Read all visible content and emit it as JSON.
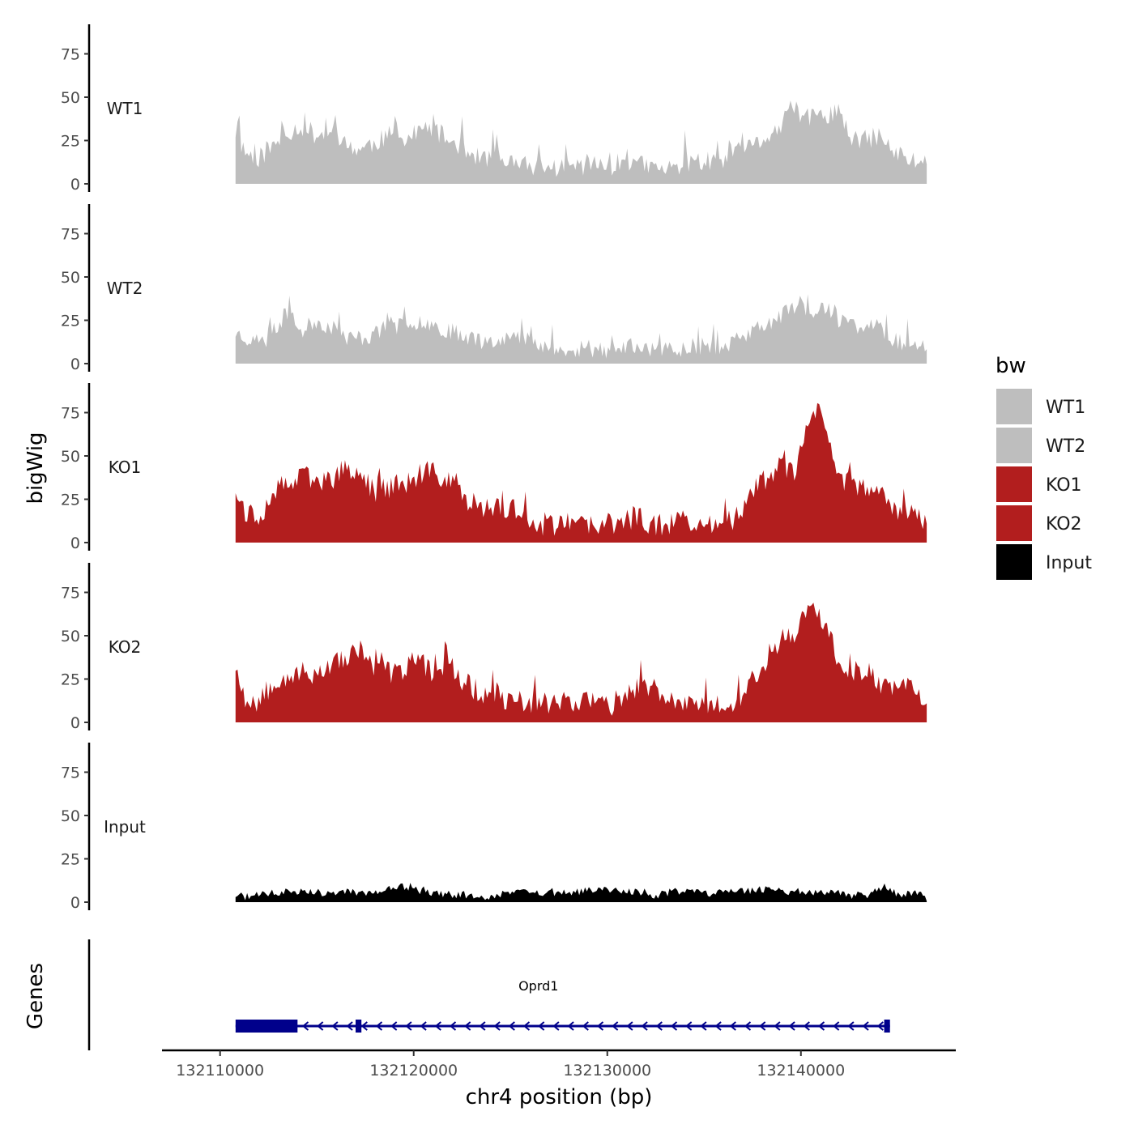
{
  "chart_data": {
    "type": "area",
    "y_axis_title": "bigWig",
    "x_axis_title": "chr4 position (bp)",
    "genes_axis_title": "Genes",
    "xlim": [
      132107000,
      132148000
    ],
    "x_data_range": [
      132110800,
      132146500
    ],
    "ylim": [
      0,
      92
    ],
    "y_ticks": [
      0,
      25,
      50,
      75
    ],
    "x_ticks": [
      132110000,
      132120000,
      132130000,
      132140000
    ],
    "x_tick_labels": [
      "132110000",
      "132120000",
      "132130000",
      "132140000"
    ],
    "legend": {
      "title": "bw",
      "position": "right",
      "entries": [
        {
          "label": "WT1",
          "color": "#bebebe"
        },
        {
          "label": "WT2",
          "color": "#bebebe"
        },
        {
          "label": "KO1",
          "color": "#b21e1e"
        },
        {
          "label": "KO2",
          "color": "#b21e1e"
        },
        {
          "label": "Input",
          "color": "#000000"
        }
      ]
    },
    "series": [
      {
        "name": "WT1",
        "color": "#bebebe",
        "anchors": [
          [
            132110800,
            30
          ],
          [
            132111300,
            18
          ],
          [
            132112000,
            15
          ],
          [
            132112800,
            22
          ],
          [
            132113500,
            30
          ],
          [
            132114200,
            33
          ],
          [
            132115000,
            28
          ],
          [
            132115800,
            30
          ],
          [
            132116500,
            22
          ],
          [
            132117300,
            20
          ],
          [
            132118000,
            24
          ],
          [
            132118800,
            28
          ],
          [
            132119500,
            25
          ],
          [
            132120300,
            30
          ],
          [
            132121000,
            32
          ],
          [
            132121800,
            25
          ],
          [
            132122500,
            22
          ],
          [
            132123300,
            15
          ],
          [
            132124000,
            15
          ],
          [
            132125000,
            12
          ],
          [
            132126000,
            10
          ],
          [
            132127000,
            9
          ],
          [
            132128000,
            10
          ],
          [
            132129000,
            11
          ],
          [
            132130000,
            10
          ],
          [
            132131000,
            13
          ],
          [
            132132000,
            10
          ],
          [
            132133000,
            8
          ],
          [
            132134000,
            12
          ],
          [
            132135000,
            13
          ],
          [
            132136000,
            12
          ],
          [
            132137000,
            18
          ],
          [
            132138000,
            25
          ],
          [
            132139000,
            33
          ],
          [
            132139600,
            45
          ],
          [
            132140200,
            38
          ],
          [
            132141000,
            38
          ],
          [
            132141800,
            42
          ],
          [
            132142600,
            26
          ],
          [
            132143300,
            25
          ],
          [
            132144000,
            28
          ],
          [
            132144800,
            18
          ],
          [
            132145600,
            14
          ],
          [
            132146500,
            12
          ]
        ],
        "noise": 6,
        "spike_prob": 0.12,
        "spike": 14,
        "seed": 11
      },
      {
        "name": "WT2",
        "color": "#bebebe",
        "anchors": [
          [
            132110800,
            18
          ],
          [
            132111500,
            14
          ],
          [
            132112300,
            12
          ],
          [
            132113000,
            22
          ],
          [
            132113600,
            32
          ],
          [
            132114100,
            18
          ],
          [
            132115000,
            25
          ],
          [
            132115800,
            20
          ],
          [
            132116500,
            15
          ],
          [
            132117500,
            15
          ],
          [
            132118500,
            20
          ],
          [
            132119500,
            22
          ],
          [
            132120500,
            25
          ],
          [
            132121500,
            20
          ],
          [
            132122500,
            17
          ],
          [
            132123500,
            13
          ],
          [
            132124500,
            15
          ],
          [
            132125500,
            15
          ],
          [
            132126500,
            12
          ],
          [
            132127300,
            8
          ],
          [
            132128200,
            6
          ],
          [
            132129000,
            7
          ],
          [
            132130000,
            7
          ],
          [
            132131000,
            10
          ],
          [
            132132000,
            9
          ],
          [
            132133000,
            8
          ],
          [
            132134000,
            9
          ],
          [
            132135000,
            10
          ],
          [
            132136000,
            10
          ],
          [
            132137000,
            15
          ],
          [
            132138000,
            22
          ],
          [
            132139000,
            27
          ],
          [
            132139800,
            35
          ],
          [
            132140500,
            30
          ],
          [
            132141200,
            32
          ],
          [
            132142000,
            25
          ],
          [
            132142800,
            22
          ],
          [
            132143500,
            22
          ],
          [
            132144200,
            20
          ],
          [
            132145000,
            12
          ],
          [
            132146500,
            12
          ]
        ],
        "noise": 5,
        "spike_prob": 0.1,
        "spike": 12,
        "seed": 23
      },
      {
        "name": "KO1",
        "color": "#b21e1e",
        "anchors": [
          [
            132110800,
            32
          ],
          [
            132111300,
            18
          ],
          [
            132112000,
            15
          ],
          [
            132112800,
            30
          ],
          [
            132113800,
            35
          ],
          [
            132114500,
            38
          ],
          [
            132115500,
            35
          ],
          [
            132116500,
            42
          ],
          [
            132117300,
            38
          ],
          [
            132118000,
            30
          ],
          [
            132119000,
            33
          ],
          [
            132120000,
            35
          ],
          [
            132121000,
            40
          ],
          [
            132122000,
            35
          ],
          [
            132122800,
            25
          ],
          [
            132123500,
            18
          ],
          [
            132124500,
            20
          ],
          [
            132125500,
            18
          ],
          [
            132126500,
            10
          ],
          [
            132127500,
            11
          ],
          [
            132128500,
            10
          ],
          [
            132129500,
            9
          ],
          [
            132130500,
            12
          ],
          [
            132131500,
            15
          ],
          [
            132132500,
            10
          ],
          [
            132133500,
            12
          ],
          [
            132134500,
            11
          ],
          [
            132135500,
            11
          ],
          [
            132136500,
            12
          ],
          [
            132137500,
            30
          ],
          [
            132138300,
            38
          ],
          [
            132139000,
            45
          ],
          [
            132139700,
            40
          ],
          [
            132140300,
            62
          ],
          [
            132140800,
            80
          ],
          [
            132141300,
            60
          ],
          [
            132142000,
            38
          ],
          [
            132142800,
            33
          ],
          [
            132143500,
            28
          ],
          [
            132144300,
            25
          ],
          [
            132145000,
            20
          ],
          [
            132146000,
            18
          ],
          [
            132146500,
            8
          ]
        ],
        "noise": 7,
        "spike_prob": 0.1,
        "spike": 10,
        "seed": 37
      },
      {
        "name": "KO2",
        "color": "#b21e1e",
        "anchors": [
          [
            132110800,
            32
          ],
          [
            132111300,
            15
          ],
          [
            132112000,
            12
          ],
          [
            132112800,
            25
          ],
          [
            132113800,
            28
          ],
          [
            132114800,
            28
          ],
          [
            132115800,
            33
          ],
          [
            132116500,
            38
          ],
          [
            132117300,
            40
          ],
          [
            132118000,
            30
          ],
          [
            132119000,
            28
          ],
          [
            132120000,
            35
          ],
          [
            132121000,
            30
          ],
          [
            132121800,
            35
          ],
          [
            132122500,
            25
          ],
          [
            132123300,
            18
          ],
          [
            132124300,
            15
          ],
          [
            132125300,
            12
          ],
          [
            132126300,
            12
          ],
          [
            132127300,
            12
          ],
          [
            132128300,
            13
          ],
          [
            132129300,
            12
          ],
          [
            132130300,
            10
          ],
          [
            132131300,
            18
          ],
          [
            132132000,
            22
          ],
          [
            132132800,
            12
          ],
          [
            132133800,
            12
          ],
          [
            132134800,
            12
          ],
          [
            132135800,
            12
          ],
          [
            132136800,
            13
          ],
          [
            132137800,
            28
          ],
          [
            132138600,
            45
          ],
          [
            132139300,
            50
          ],
          [
            132140000,
            55
          ],
          [
            132140600,
            72
          ],
          [
            132141200,
            55
          ],
          [
            132142000,
            35
          ],
          [
            132142800,
            30
          ],
          [
            132143500,
            28
          ],
          [
            132144300,
            20
          ],
          [
            132145200,
            22
          ],
          [
            132146500,
            15
          ]
        ],
        "noise": 7,
        "spike_prob": 0.1,
        "spike": 10,
        "seed": 53
      },
      {
        "name": "Input",
        "color": "#000000",
        "anchors": [
          [
            132110800,
            4
          ],
          [
            132111500,
            3
          ],
          [
            132112500,
            5
          ],
          [
            132113500,
            6
          ],
          [
            132114500,
            7
          ],
          [
            132115500,
            5
          ],
          [
            132116500,
            6
          ],
          [
            132117500,
            5
          ],
          [
            132118500,
            7
          ],
          [
            132119500,
            9
          ],
          [
            132120500,
            6
          ],
          [
            132121500,
            5
          ],
          [
            132122500,
            4
          ],
          [
            132123500,
            2
          ],
          [
            132124500,
            5
          ],
          [
            132125500,
            6
          ],
          [
            132126500,
            5
          ],
          [
            132127500,
            5
          ],
          [
            132128500,
            6
          ],
          [
            132129500,
            7
          ],
          [
            132130500,
            7
          ],
          [
            132131500,
            6
          ],
          [
            132132500,
            4
          ],
          [
            132133500,
            6
          ],
          [
            132134500,
            6
          ],
          [
            132135500,
            5
          ],
          [
            132136500,
            6
          ],
          [
            132137500,
            7
          ],
          [
            132138500,
            8
          ],
          [
            132139500,
            6
          ],
          [
            132140500,
            6
          ],
          [
            132141500,
            6
          ],
          [
            132142500,
            4
          ],
          [
            132143500,
            4
          ],
          [
            132144400,
            9
          ],
          [
            132145000,
            4
          ],
          [
            132146000,
            6
          ],
          [
            132146500,
            2
          ]
        ],
        "noise": 2.2,
        "spike_prob": 0.05,
        "spike": 4,
        "seed": 71
      }
    ],
    "gene": {
      "name": "Oprd1",
      "color": "#00008b",
      "start": 132110800,
      "end": 132144600,
      "strand": "-",
      "exons": [
        [
          132110800,
          132114000
        ],
        [
          132117000,
          132117300
        ],
        [
          132144300,
          132144600
        ]
      ]
    }
  }
}
